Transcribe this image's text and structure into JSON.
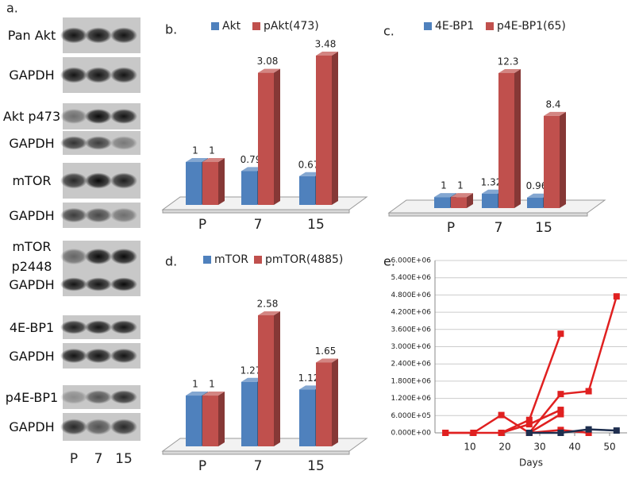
{
  "panel_a": {
    "label": "a.",
    "rows": [
      {
        "label": "Pan Akt"
      },
      {
        "label": "GAPDH"
      },
      {
        "label": "Akt p473"
      },
      {
        "label": "GAPDH"
      },
      {
        "label": "mTOR"
      },
      {
        "label": "GAPDH"
      },
      {
        "label": "mTOR p2448"
      },
      {
        "label": "GAPDH"
      },
      {
        "label": "4E-BP1"
      },
      {
        "label": "GAPDH"
      },
      {
        "label": "p4E-BP1"
      },
      {
        "label": "GAPDH"
      }
    ],
    "lanes": [
      "P",
      "7",
      "15"
    ]
  },
  "chart_data": [
    {
      "type": "bar3d",
      "panel_label": "b.",
      "categories": [
        "P",
        "7",
        "15"
      ],
      "series": [
        {
          "name": "Akt",
          "color": "#4f81bd",
          "values": [
            1,
            0.79,
            0.67
          ]
        },
        {
          "name": "pAkt(473)",
          "color": "#c0504d",
          "values": [
            1,
            3.08,
            3.48
          ]
        }
      ]
    },
    {
      "type": "bar3d",
      "panel_label": "c.",
      "categories": [
        "P",
        "7",
        "15"
      ],
      "series": [
        {
          "name": "4E-BP1",
          "color": "#4f81bd",
          "values": [
            1,
            1.32,
            0.96
          ]
        },
        {
          "name": "p4E-BP1(65)",
          "color": "#c0504d",
          "values": [
            1,
            12.3,
            8.4
          ]
        }
      ]
    },
    {
      "type": "bar3d",
      "panel_label": "d.",
      "categories": [
        "P",
        "7",
        "15"
      ],
      "series": [
        {
          "name": "mTOR",
          "color": "#4f81bd",
          "values": [
            1,
            1.27,
            1.12
          ]
        },
        {
          "name": "pmTOR(4885)",
          "color": "#c0504d",
          "values": [
            1,
            2.58,
            1.65
          ]
        }
      ]
    },
    {
      "type": "line",
      "panel_label": "e.",
      "x_label": "Days",
      "x": [
        3,
        11,
        19,
        27,
        36,
        44,
        52
      ],
      "xlim": [
        0,
        55
      ],
      "xticks": [
        10,
        20,
        30,
        40,
        50
      ],
      "ylim": [
        0,
        6000000
      ],
      "yticks": [
        {
          "value": 0,
          "label": "0.000E+00"
        },
        {
          "value": 600000,
          "label": "6.000E+05"
        },
        {
          "value": 1200000,
          "label": "1.200E+06"
        },
        {
          "value": 1800000,
          "label": "1.800E+06"
        },
        {
          "value": 2400000,
          "label": "2.400E+06"
        },
        {
          "value": 3000000,
          "label": "3.000E+06"
        },
        {
          "value": 3600000,
          "label": "3.600E+06"
        },
        {
          "value": 4200000,
          "label": "4.200E+06"
        },
        {
          "value": 4800000,
          "label": "4.800E+06"
        },
        {
          "value": 5400000,
          "label": "5.400E+06"
        },
        {
          "value": 6000000,
          "label": "6.000E+06"
        }
      ],
      "grid": true,
      "series": [
        {
          "color": "#e02020",
          "values": [
            0,
            0,
            0,
            450000,
            3450000,
            null,
            null
          ]
        },
        {
          "color": "#e02020",
          "values": [
            0,
            0,
            620000,
            0,
            1350000,
            1450000,
            4750000
          ]
        },
        {
          "color": "#e02020",
          "values": [
            null,
            null,
            0,
            300000,
            800000,
            null,
            null
          ]
        },
        {
          "color": "#e02020",
          "values": [
            null,
            null,
            null,
            0,
            650000,
            null,
            null
          ]
        },
        {
          "color": "#e02020",
          "values": [
            null,
            null,
            null,
            0,
            100000,
            0,
            null
          ]
        },
        {
          "color": "#1f2f4f",
          "values": [
            null,
            null,
            null,
            0,
            0,
            120000,
            80000
          ]
        }
      ]
    }
  ]
}
